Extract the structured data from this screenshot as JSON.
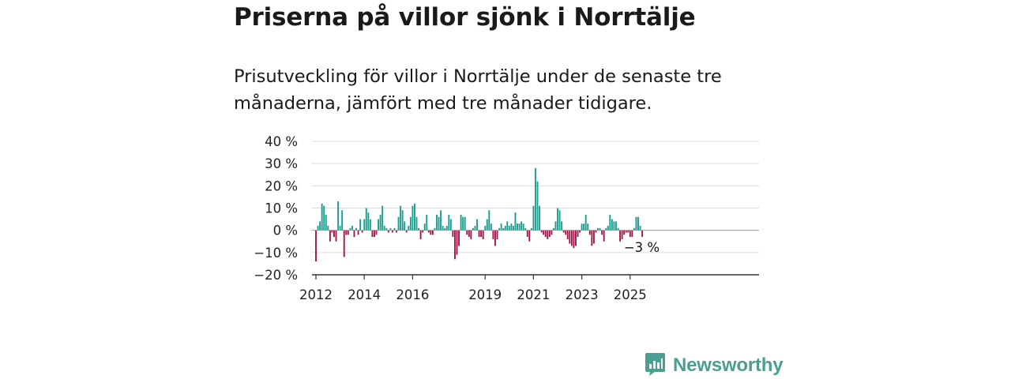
{
  "header": {
    "title": "Priserna på villor sjönk i Norrtälje",
    "subtitle": "Prisutveckling för villor i Norrtälje under de senaste tre månaderna, jämfört med tre månader tidigare."
  },
  "brand": {
    "name": "Newsworthy",
    "icon": "bar-chart-bubble-icon"
  },
  "colors": {
    "positive": "#1a9e8f",
    "negative": "#a3154a",
    "grid": "#dcdcdc",
    "axis": "#333333",
    "brand": "#4a9e93"
  },
  "chart_data": {
    "type": "bar",
    "start": "2012-01",
    "yticks": [
      "40 %",
      "30 %",
      "20 %",
      "10 %",
      "0 %",
      "−10 %",
      "−20 %"
    ],
    "ylim": [
      -20,
      40
    ],
    "xticks": [
      "2012",
      "2014",
      "2016",
      "2019",
      "2021",
      "2023",
      "2025"
    ],
    "last_label": "−3 %",
    "grid": true,
    "values": [
      -14,
      2,
      4,
      12,
      11,
      7,
      2,
      -5,
      -1,
      -3,
      -5,
      13,
      2,
      9,
      -12,
      -2,
      -2,
      1,
      2,
      -3,
      1,
      -2,
      5,
      -1,
      5,
      10,
      8,
      5,
      -3,
      -3,
      -2,
      5,
      7,
      11,
      2,
      1,
      -1,
      1,
      -1,
      1,
      -1,
      6,
      11,
      9,
      4,
      -1,
      2,
      6,
      11,
      12,
      6,
      1,
      -4,
      -1,
      3,
      7,
      -1,
      -2,
      -2,
      1,
      7,
      6,
      9,
      2,
      1,
      2,
      7,
      5,
      -3,
      -13,
      -11,
      -7,
      7,
      6,
      6,
      -2,
      -3,
      -4,
      1,
      2,
      5,
      -3,
      -3,
      -4,
      2,
      5,
      9,
      3,
      -4,
      -7,
      -4,
      1,
      3,
      1,
      2,
      4,
      2,
      3,
      2,
      8,
      3,
      3,
      4,
      3,
      1,
      -3,
      -5,
      1,
      11,
      28,
      22,
      11,
      -1,
      -2,
      -3,
      -4,
      -3,
      -2,
      1,
      4,
      10,
      9,
      4,
      -1,
      -2,
      -4,
      -6,
      -7,
      -8,
      -7,
      -3,
      -1,
      3,
      3,
      7,
      3,
      -2,
      -7,
      -6,
      -1,
      1,
      1,
      -2,
      -5,
      1,
      2,
      7,
      5,
      4,
      4,
      1,
      -5,
      -4,
      -2,
      -1,
      -1,
      -3,
      -3,
      1,
      6,
      6,
      2,
      -3
    ]
  }
}
